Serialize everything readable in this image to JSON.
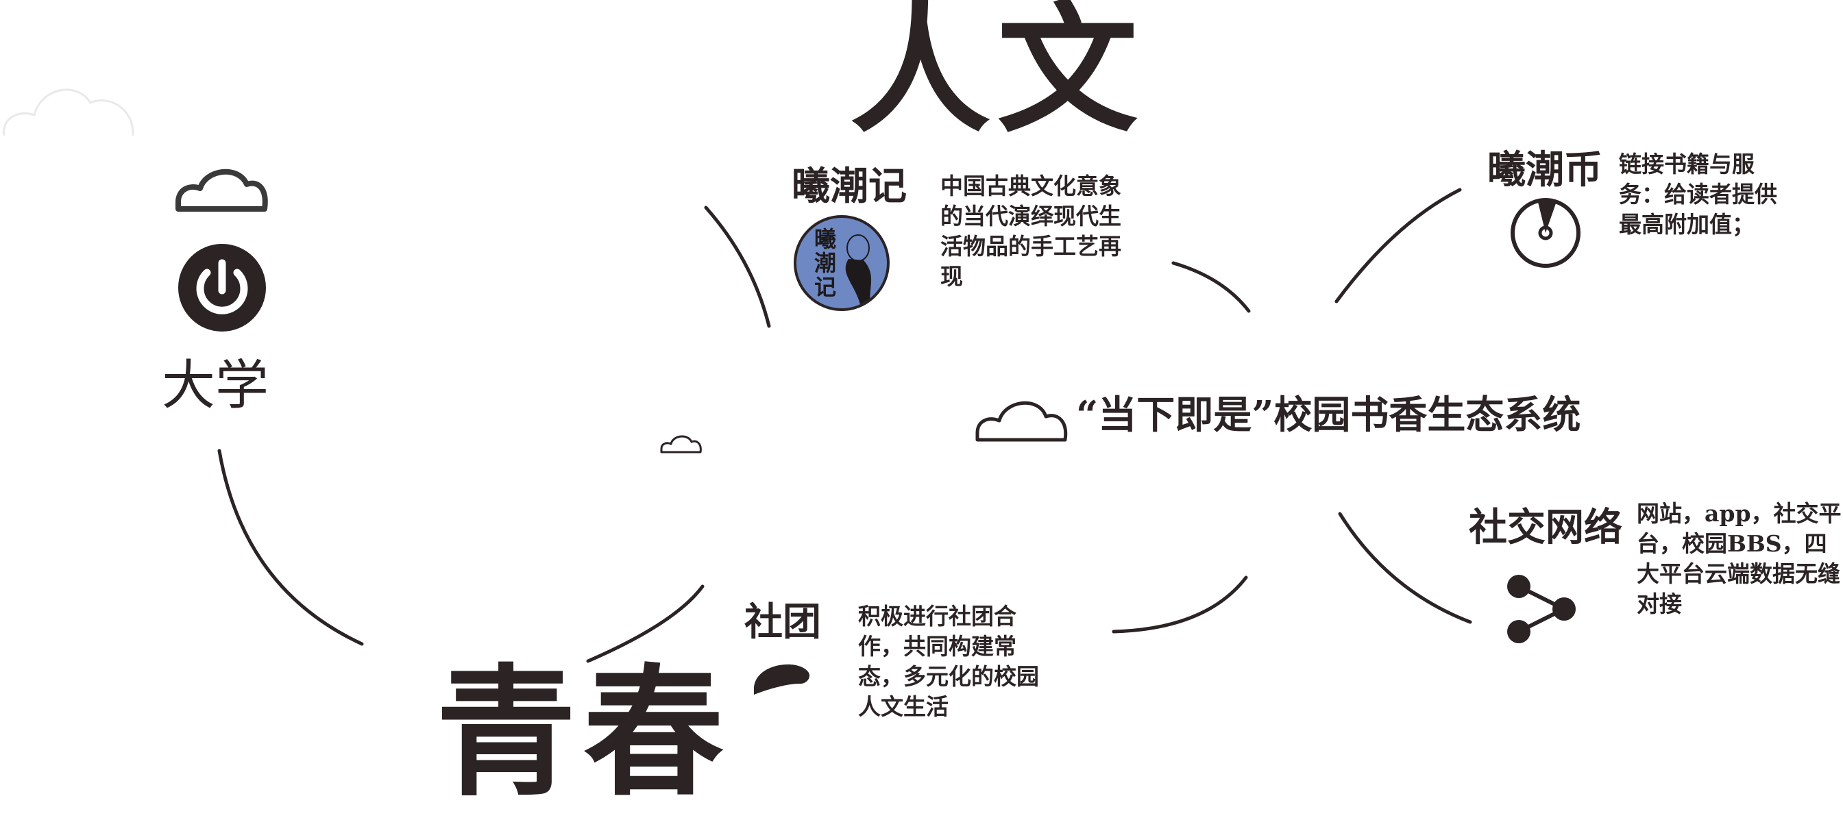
{
  "center": {
    "title": "“当下即是”校园书香生态系统"
  },
  "renwen": {
    "big_title": "人文"
  },
  "qingchun": {
    "big_title": "青春"
  },
  "university": {
    "label": "大学"
  },
  "xichaoji": {
    "title": "曦潮记",
    "badge_text": "曦潮记",
    "description": "中国古典文化意象的当代演绎现代生活物品的手工艺再现"
  },
  "xichaobi": {
    "title": "曦潮币",
    "description": "链接书籍与服务：给读者提供最高附加值；"
  },
  "social_network": {
    "title": "社交网络",
    "description": "网站，app，社交平台，校园BBS，四大平台云端数据无缝对接"
  },
  "club": {
    "title": "社团",
    "description": "积极进行社团合作，共同构建常态，多元化的校园人文生活"
  },
  "icons": [
    "cloud-icon",
    "power-icon",
    "badge-icon",
    "coin-icon",
    "share-icon",
    "chat-bubble-icon"
  ],
  "colors": {
    "ink": "#2b2324",
    "badge_blue": "#6e88c4",
    "background": "#ffffff"
  }
}
